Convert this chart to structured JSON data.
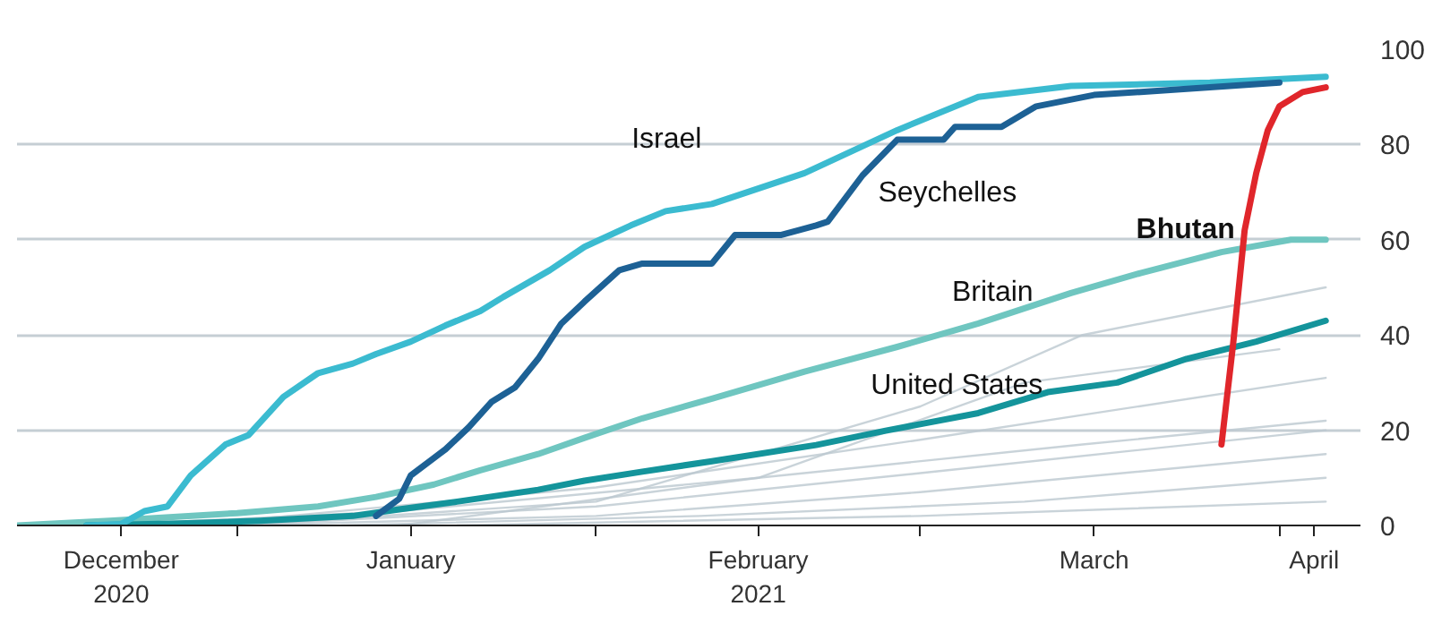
{
  "chart_data": {
    "type": "line",
    "xlim": [
      "2020-12-13",
      "2021-04-08"
    ],
    "xticks": [
      {
        "value": "2020-12-22",
        "label": "December\n2020"
      },
      {
        "value": "2021-01-01",
        "label": null
      },
      {
        "value": "2021-01-16",
        "label": "January"
      },
      {
        "value": "2021-02-01",
        "label": null
      },
      {
        "value": "2021-02-15",
        "label": "February\n2021"
      },
      {
        "value": "2021-03-01",
        "label": null
      },
      {
        "value": "2021-03-16",
        "label": "March"
      },
      {
        "value": "2021-04-01",
        "label": null
      },
      {
        "value": "2021-04-04",
        "label": "April"
      }
    ],
    "ylim": [
      0,
      100
    ],
    "yticks": [
      0,
      20,
      40,
      60,
      80,
      100
    ],
    "grid": "y",
    "series": [
      {
        "color": "#bcc8d0",
        "x": [
          "2021-01-01",
          "2021-02-01",
          "2021-03-01",
          "2021-03-15",
          "2021-04-05"
        ],
        "values": [
          0,
          5,
          25,
          40,
          50
        ]
      },
      {
        "color": "#bcc8d0",
        "x": [
          "2021-01-15",
          "2021-02-15",
          "2021-03-10",
          "2021-04-01"
        ],
        "values": [
          0,
          10,
          30,
          37
        ]
      },
      {
        "color": "#bcc8d0",
        "x": [
          "2021-01-01",
          "2021-02-01",
          "2021-03-01",
          "2021-04-05"
        ],
        "values": [
          1,
          8,
          18,
          31
        ]
      },
      {
        "color": "#bcc8d0",
        "x": [
          "2020-12-20",
          "2021-01-15",
          "2021-02-15",
          "2021-03-15",
          "2021-04-05"
        ],
        "values": [
          0,
          3,
          10,
          17,
          22
        ]
      },
      {
        "color": "#bcc8d0",
        "x": [
          "2021-01-01",
          "2021-02-01",
          "2021-03-01",
          "2021-04-05"
        ],
        "values": [
          0,
          4,
          11,
          20
        ]
      },
      {
        "color": "#bcc8d0",
        "x": [
          "2021-01-01",
          "2021-02-01",
          "2021-03-01",
          "2021-04-05"
        ],
        "values": [
          0,
          2,
          7,
          15
        ]
      },
      {
        "color": "#bcc8d0",
        "x": [
          "2021-01-10",
          "2021-02-10",
          "2021-03-10",
          "2021-04-05"
        ],
        "values": [
          0,
          2,
          5,
          10
        ]
      },
      {
        "color": "#bcc8d0",
        "x": [
          "2021-01-20",
          "2021-03-01",
          "2021-04-05"
        ],
        "values": [
          0,
          2,
          5
        ]
      },
      {
        "name": "Britain",
        "color": "#6fc6c0",
        "x": [
          "2020-12-13",
          "2020-12-21",
          "2021-01-01",
          "2021-01-08",
          "2021-01-13",
          "2021-01-18",
          "2021-01-22",
          "2021-01-27",
          "2021-01-31",
          "2021-02-05",
          "2021-02-11",
          "2021-02-19",
          "2021-02-27",
          "2021-03-06",
          "2021-03-14",
          "2021-03-20",
          "2021-03-27",
          "2021-04-02",
          "2021-04-05"
        ],
        "values": [
          0,
          1,
          2.6,
          4,
          6,
          8.6,
          11.6,
          15,
          18.4,
          22.5,
          26.6,
          32.3,
          37.5,
          42.4,
          48.8,
          53,
          57.4,
          60,
          60
        ]
      },
      {
        "name": "United States",
        "color": "#14949b",
        "x": [
          "2020-12-19",
          "2020-12-27",
          "2021-01-03",
          "2021-01-11",
          "2021-01-15",
          "2021-01-20",
          "2021-01-27",
          "2021-01-31",
          "2021-02-05",
          "2021-02-11",
          "2021-02-20",
          "2021-02-26",
          "2021-03-06",
          "2021-03-12",
          "2021-03-18",
          "2021-03-24",
          "2021-03-30",
          "2021-04-05"
        ],
        "values": [
          0,
          0.4,
          1,
          2,
          3.4,
          5,
          7.5,
          9.4,
          11.3,
          13.5,
          16.9,
          19.9,
          23.6,
          28,
          30,
          35,
          38.6,
          43
        ]
      },
      {
        "name": "Israel",
        "color": "#3bbbd0",
        "x": [
          "2020-12-19",
          "2020-12-22",
          "2020-12-24",
          "2020-12-26",
          "2020-12-28",
          "2020-12-31",
          "2021-01-02",
          "2021-01-05",
          "2021-01-08",
          "2021-01-11",
          "2021-01-13",
          "2021-01-16",
          "2021-01-19",
          "2021-01-22",
          "2021-01-24",
          "2021-01-28",
          "2021-01-31",
          "2021-02-04",
          "2021-02-07",
          "2021-02-11",
          "2021-02-19",
          "2021-02-27",
          "2021-03-06",
          "2021-03-14",
          "2021-03-26",
          "2021-04-05"
        ],
        "values": [
          0,
          0.3,
          3,
          4,
          10.5,
          17,
          19,
          27,
          32,
          34,
          36,
          38.6,
          42,
          45,
          48,
          53.6,
          58.5,
          63,
          66,
          67.5,
          74,
          83,
          90,
          92.3,
          93,
          94.2
        ]
      },
      {
        "name": "Seychelles",
        "color": "#1d6195",
        "x": [
          "2021-01-13",
          "2021-01-15",
          "2021-01-16",
          "2021-01-19",
          "2021-01-21",
          "2021-01-23",
          "2021-01-25",
          "2021-01-27",
          "2021-01-29",
          "2021-01-31",
          "2021-02-03",
          "2021-02-05",
          "2021-02-11",
          "2021-02-13",
          "2021-02-17",
          "2021-02-20",
          "2021-02-21",
          "2021-02-24",
          "2021-02-27",
          "2021-03-03",
          "2021-03-04",
          "2021-03-08",
          "2021-03-11",
          "2021-03-16",
          "2021-03-26",
          "2021-04-01"
        ],
        "values": [
          2,
          5.6,
          10.5,
          16,
          20.6,
          26,
          29,
          35,
          42.4,
          47,
          53.6,
          55,
          55,
          61,
          61,
          63,
          63.8,
          73.5,
          81,
          81,
          83.7,
          83.7,
          88,
          90.4,
          92,
          93
        ]
      },
      {
        "name": "Bhutan",
        "color": "#e0262b",
        "x": [
          "2021-03-27",
          "2021-03-28",
          "2021-03-29",
          "2021-03-30",
          "2021-03-31",
          "2021-04-01",
          "2021-04-03",
          "2021-04-05"
        ],
        "values": [
          17,
          38,
          62,
          74,
          83,
          88,
          91,
          92
        ]
      }
    ]
  }
}
